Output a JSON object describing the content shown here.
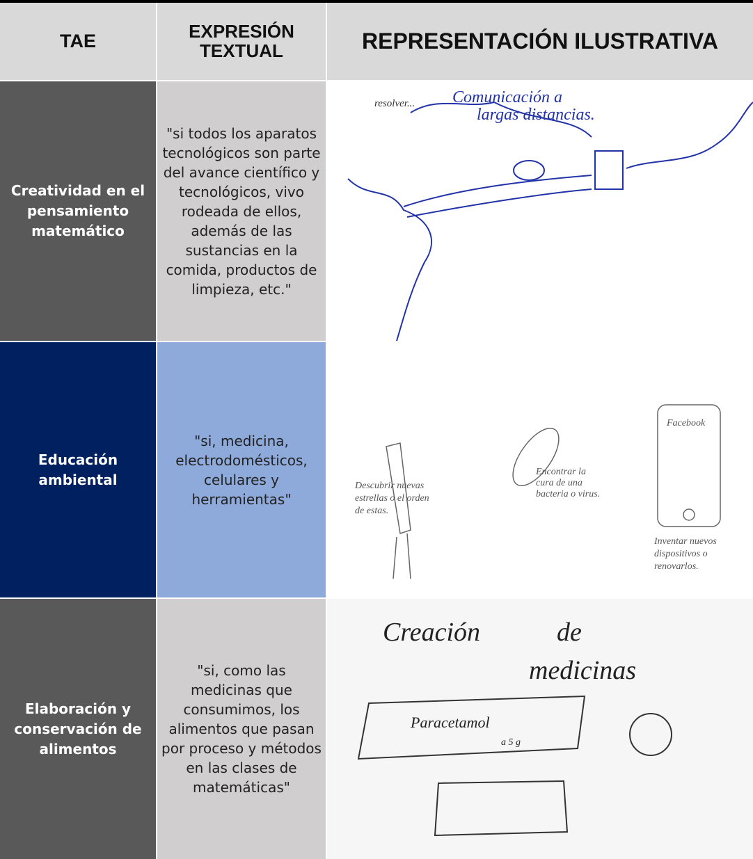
{
  "table": {
    "header": [
      "TAE",
      "EXPRESIÓN TEXTUAL",
      "REPRESENTACIÓN ILUSTRATIVA"
    ],
    "rows": [
      {
        "tae": "Creatividad en el pensamiento matemático",
        "expression": "\"si todos los aparatos tecnológicos son parte del avance científico y tecnológicos, vivo rodeada de ellos, además de las sustancias en la comida, productos de limpieza, etc.\"",
        "illustration": [
          "resolver...",
          "Comunicación a",
          "largas distancias."
        ]
      },
      {
        "tae": "Educación ambiental",
        "expression": "\"si, medicina, electrodomésticos, celulares y herramientas\"",
        "illustration": [
          "Descubrir nuevas",
          "estrellas o el orden",
          "de estas.",
          "Encontrar la",
          "cura de una",
          "bacteria o virus.",
          "Facebook",
          "Inventar nuevos",
          "dispositivos o",
          "renovarlos."
        ]
      },
      {
        "tae": "Elaboración y conservación de alimentos",
        "expression": "\"si, como las medicinas que consumimos, los alimentos que pasan por proceso y métodos en las clases de matemáticas\"",
        "illustration": [
          "Creación",
          "de",
          "medicinas",
          "Paracetamol",
          "a 5 g"
        ]
      }
    ]
  }
}
